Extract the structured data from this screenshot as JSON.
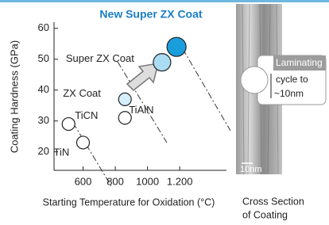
{
  "chart_data": {
    "type": "scatter",
    "title": "New Super ZX Coat",
    "xlabel": "Starting Temperature for Oxidation (°C)",
    "ylabel": "Coating Hardness (GPa)",
    "xlim": [
      420,
      1490
    ],
    "ylim": [
      14,
      62
    ],
    "xticks": [
      600,
      800,
      1000,
      {
        "value": 1200,
        "label": "1.200"
      }
    ],
    "yticks": [
      20,
      30,
      40,
      50,
      60
    ],
    "points": [
      {
        "label": "TiN",
        "x": 600,
        "y": 23,
        "color": "#ffffff"
      },
      {
        "label": "TiCN",
        "x": 510,
        "y": 29,
        "color": "#ffffff"
      },
      {
        "label": "TiAlN",
        "x": 860,
        "y": 31,
        "color": "#ffffff"
      },
      {
        "label": "ZX Coat",
        "x": 860,
        "y": 37,
        "color": "#d4eefa"
      },
      {
        "label": "Super ZX Coat",
        "x": 1090,
        "y": 49,
        "color": "#aadcf4"
      },
      {
        "x": 1180,
        "y": 54,
        "color": "#1a9ddb"
      }
    ]
  },
  "image_panel": {
    "callout": [
      "Laminating",
      "cycle to",
      "~10nm"
    ],
    "scale": "10nm",
    "caption": [
      "Cross Section",
      "of Coating"
    ]
  }
}
